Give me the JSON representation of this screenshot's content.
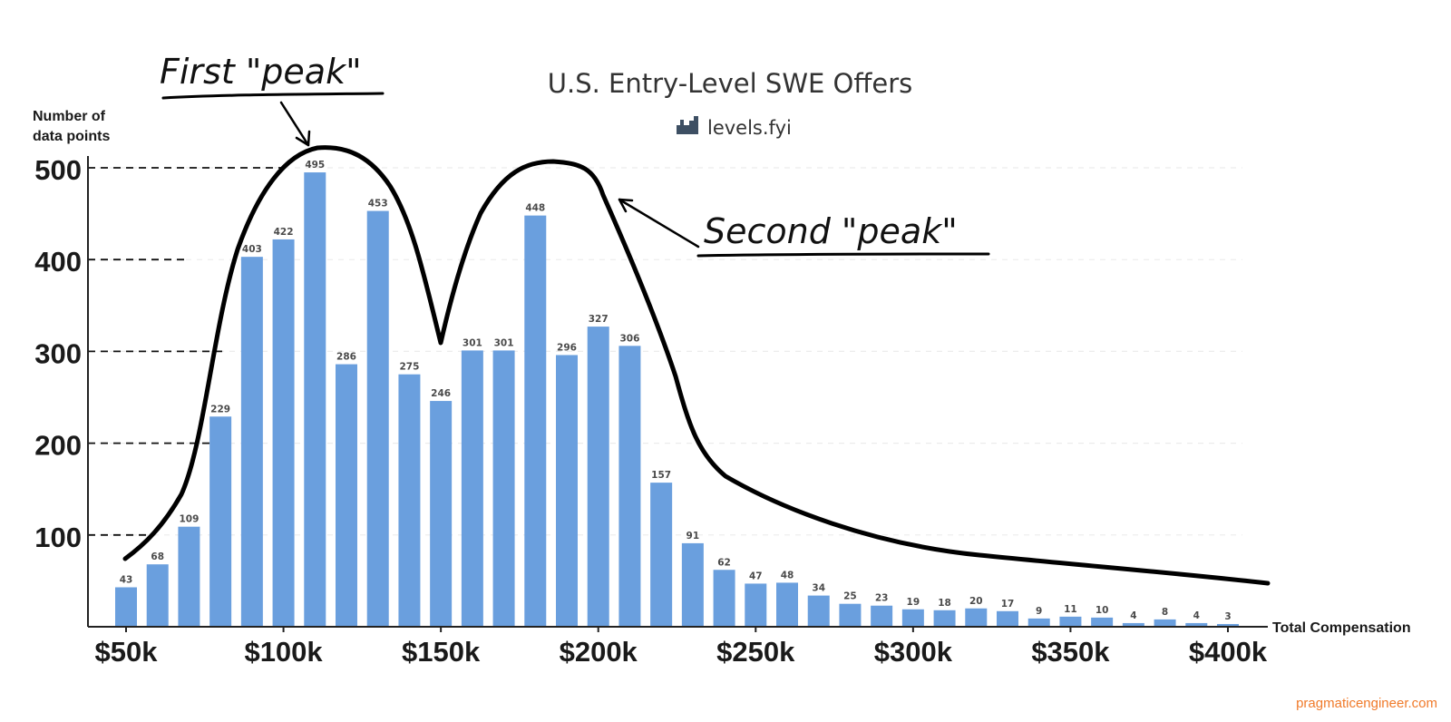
{
  "chart_data": {
    "type": "bar",
    "title": "U.S. Entry-Level SWE Offers",
    "source": "levels.fyi",
    "ylabel_lines": [
      "Number of",
      "data points"
    ],
    "xlabel": "Total Compensation",
    "x_ticks": [
      "$50k",
      "$100k",
      "$150k",
      "$200k",
      "$250k",
      "$300k",
      "$350k",
      "$400k"
    ],
    "x_tick_values": [
      50,
      100,
      150,
      200,
      250,
      300,
      350,
      400
    ],
    "y_ticks": [
      100,
      200,
      300,
      400,
      500
    ],
    "ylim": [
      0,
      500
    ],
    "bar_start": 50,
    "bar_step": 10,
    "values": [
      43,
      68,
      109,
      229,
      403,
      422,
      495,
      286,
      453,
      275,
      246,
      301,
      301,
      448,
      296,
      327,
      306,
      157,
      91,
      62,
      47,
      48,
      34,
      25,
      23,
      19,
      18,
      20,
      17,
      9,
      11,
      10,
      4,
      8,
      4,
      3
    ],
    "bar_color": "#6a9fde",
    "annotations": [
      {
        "text": "First \"peak\""
      },
      {
        "text": "Second \"peak\""
      }
    ]
  },
  "footer": {
    "credit": "pragmaticengineer.com",
    "credit_color": "#f07a2a"
  }
}
